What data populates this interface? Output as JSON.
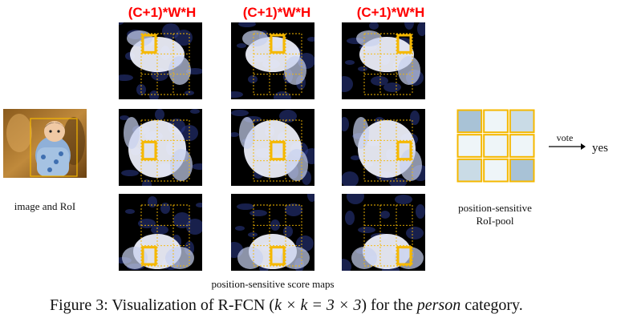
{
  "headers": [
    "(C+1)*W*H",
    "(C+1)*W*H",
    "(C+1)*W*H"
  ],
  "labels": {
    "image": "image and RoI",
    "score_maps": "position-sensitive score maps",
    "pool_line1": "position-sensitive",
    "pool_line2": "RoI-pool",
    "vote": "vote",
    "result": "yes"
  },
  "caption": {
    "prefix": "Figure 3: Visualization of R-FCN (",
    "math": "k × k = 3 × 3",
    "middle": ") for the ",
    "italic": "person",
    "suffix": " category."
  },
  "colors": {
    "header": "#ff0000",
    "roi_box": "#f5b800",
    "map_bg": "#000000",
    "map_blue": "#2b3a8a",
    "map_white": "#f2f4ff",
    "pool_dark": "#a8c2d6",
    "pool_mid": "#c9dbe6",
    "pool_light": "#eef5f8"
  },
  "pool_grid": [
    "dark",
    "light",
    "mid",
    "light",
    "light",
    "light",
    "mid",
    "light",
    "dark"
  ]
}
